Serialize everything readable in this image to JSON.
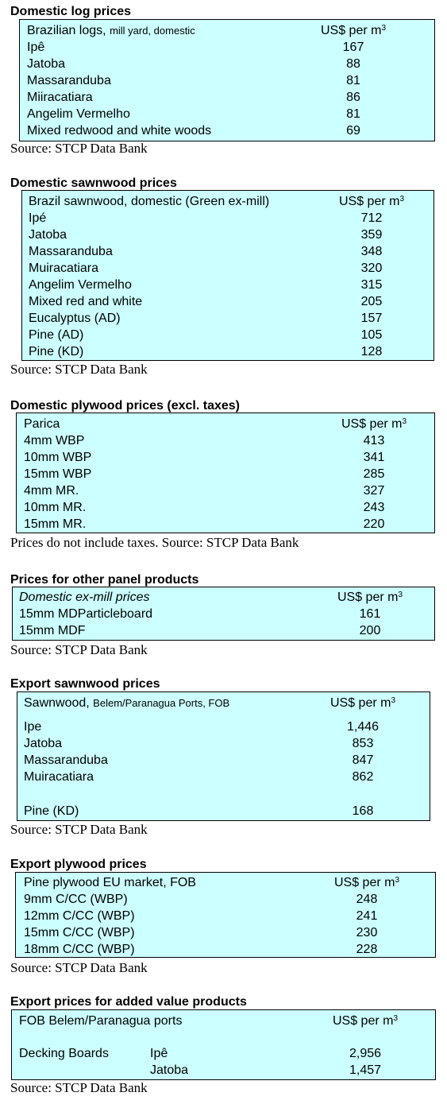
{
  "unit_prefix": "US$ per m",
  "unit_sup": "3",
  "source_text": "Source: STCP Data Bank",
  "domestic_logs": {
    "title": "Domestic log prices",
    "header_main": "Brazilian logs,",
    "header_small": "mill yard, domestic",
    "rows": [
      {
        "label": "Ipê",
        "value": "167"
      },
      {
        "label": "Jatoba",
        "value": "88"
      },
      {
        "label": "Massaranduba",
        "value": "81"
      },
      {
        "label": "Miiracatiara",
        "value": "86"
      },
      {
        "label": "Angelim Vermelho",
        "value": "81"
      },
      {
        "label": "Mixed redwood and white woods",
        "value": "69"
      }
    ]
  },
  "domestic_sawnwood": {
    "title": "Domestic sawnwood prices",
    "header": "Brazil sawnwood, domestic (Green ex-mill)",
    "rows": [
      {
        "label": "Ipé",
        "value": "712"
      },
      {
        "label": "Jatoba",
        "value": "359"
      },
      {
        "label": "Massaranduba",
        "value": "348"
      },
      {
        "label": "Muiracatiara",
        "value": "320"
      },
      {
        "label": "Angelim Vermelho",
        "value": "315"
      },
      {
        "label": "Mixed red and white",
        "value": "205"
      },
      {
        "label": "Eucalyptus (AD)",
        "value": "157"
      },
      {
        "label": "Pine (AD)",
        "value": "105"
      },
      {
        "label": "Pine (KD)",
        "value": "128"
      }
    ]
  },
  "domestic_plywood": {
    "title": "Domestic plywood prices (excl. taxes)",
    "header": "Parica",
    "rows": [
      {
        "label": "4mm WBP",
        "value": "413"
      },
      {
        "label": "10mm WBP",
        "value": "341"
      },
      {
        "label": "15mm WBP",
        "value": "285"
      },
      {
        "label": "4mm MR.",
        "value": "327"
      },
      {
        "label": "10mm MR.",
        "value": "243"
      },
      {
        "label": "15mm MR.",
        "value": "220"
      }
    ],
    "note": "Prices do not include taxes. Source: STCP Data Bank"
  },
  "other_panels": {
    "title": "Prices for other panel products",
    "header": "Domestic ex-mill prices",
    "rows": [
      {
        "label": "15mm MDParticleboard",
        "value": "161"
      },
      {
        "label": "15mm MDF",
        "value": "200"
      }
    ]
  },
  "export_sawnwood": {
    "title": "Export sawnwood prices",
    "header_main": "Sawnwood,",
    "header_small": "Belem/Paranagua Ports, FOB",
    "rows": [
      {
        "label": "Ipe",
        "value": "1,446"
      },
      {
        "label": "Jatoba",
        "value": "853"
      },
      {
        "label": "Massaranduba",
        "value": "847"
      },
      {
        "label": "Muiracatiara",
        "value": "862"
      },
      {
        "label": "Pine (KD)",
        "value": "168"
      }
    ]
  },
  "export_plywood": {
    "title": "Export plywood prices",
    "header": "Pine plywood EU market, FOB",
    "rows": [
      {
        "label": "9mm C/CC (WBP)",
        "value": "248"
      },
      {
        "label": "12mm C/CC (WBP)",
        "value": "241"
      },
      {
        "label": "15mm C/CC (WBP)",
        "value": "230"
      },
      {
        "label": "18mm C/CC (WBP)",
        "value": "228"
      }
    ]
  },
  "added_value": {
    "title": "Export prices for added value products",
    "header": "FOB Belem/Paranagua ports",
    "product": "Decking Boards",
    "rows": [
      {
        "label": "Ipê",
        "value": "2,956"
      },
      {
        "label": "Jatoba",
        "value": "1,457"
      }
    ]
  }
}
